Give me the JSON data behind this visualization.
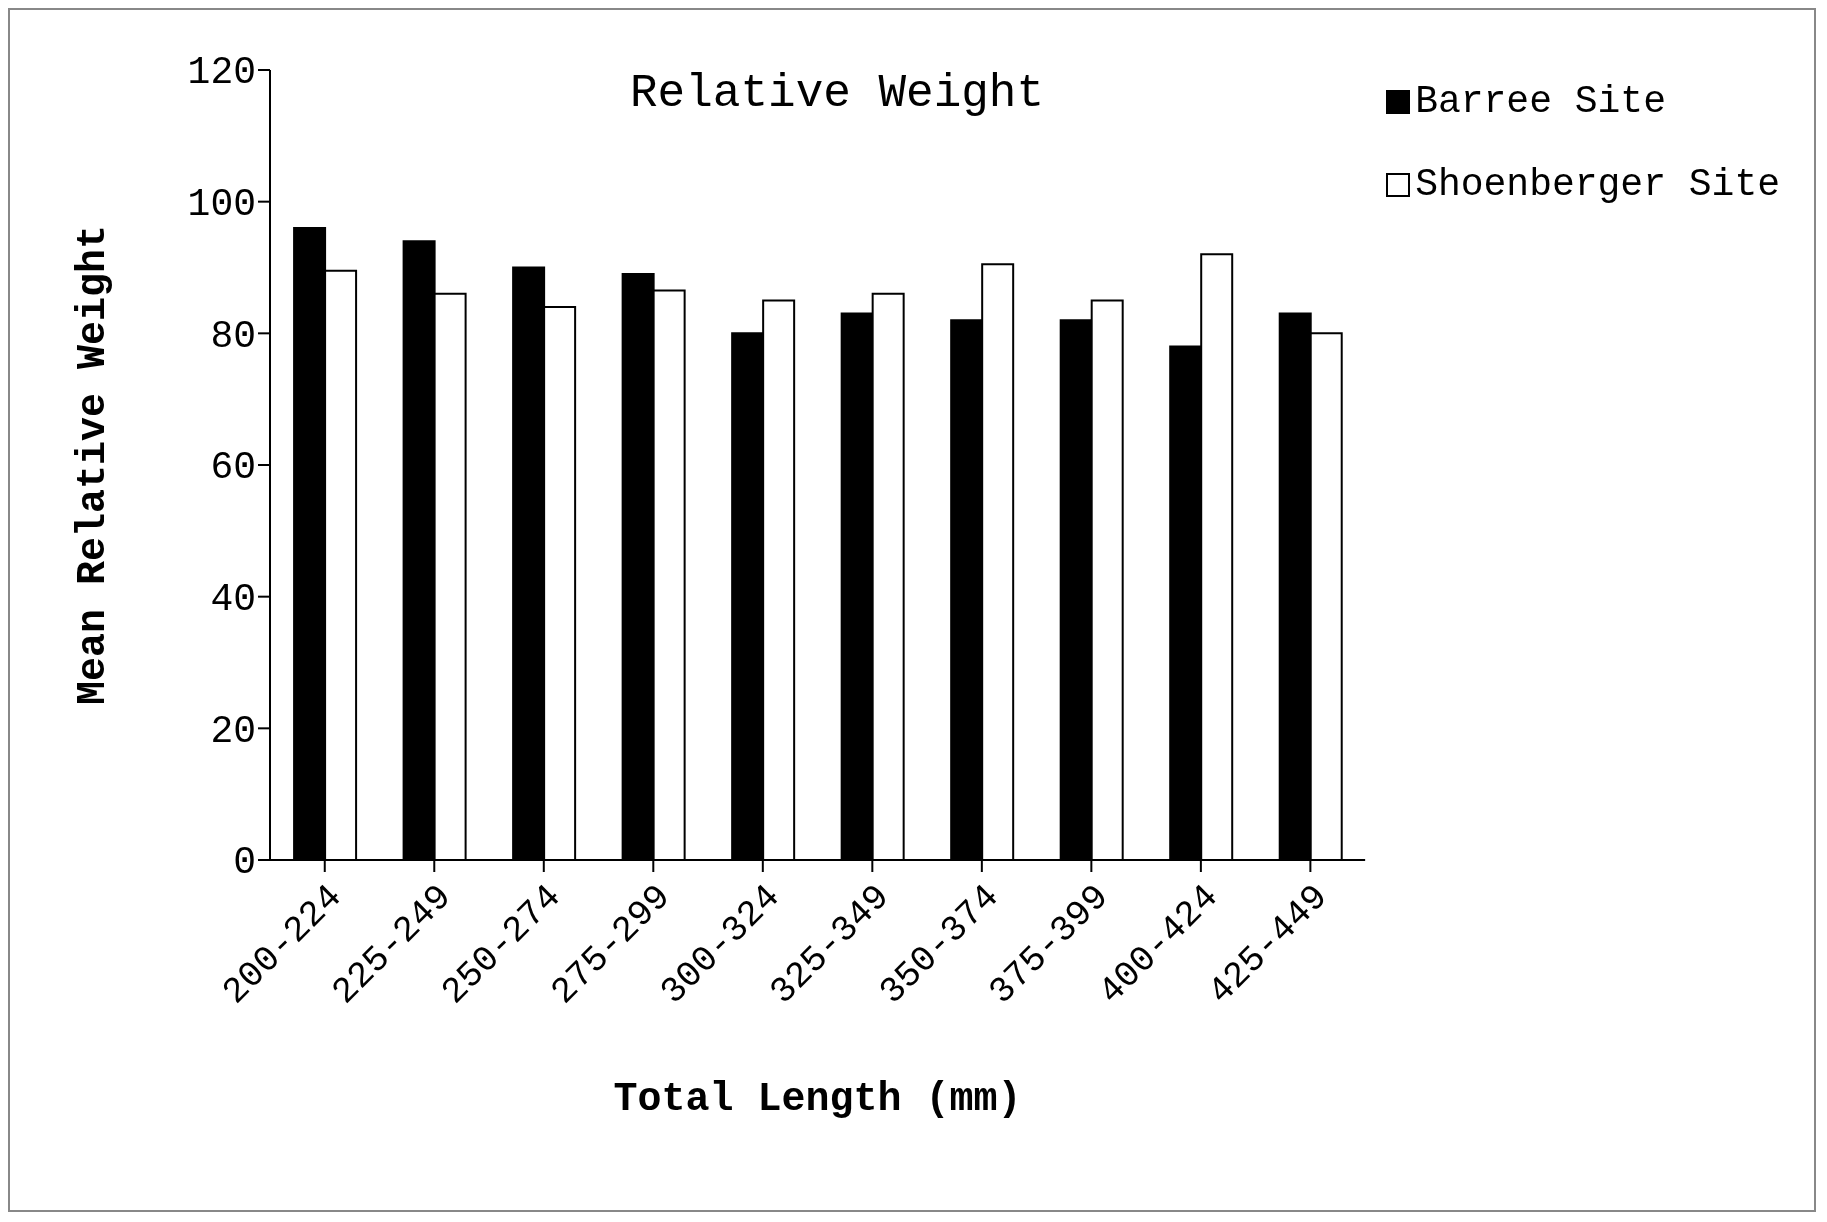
{
  "chart_data": {
    "type": "bar",
    "title": "Relative Weight",
    "xlabel": "Total Length (mm)",
    "ylabel": "Mean Relative Weight",
    "categories": [
      "200-224",
      "225-249",
      "250-274",
      "275-299",
      "300-324",
      "325-349",
      "350-374",
      "375-399",
      "400-424",
      "425-449"
    ],
    "series": [
      {
        "name": "Barree Site",
        "color": "#000000",
        "values": [
          96,
          94,
          90,
          89,
          80,
          83,
          82,
          82,
          78,
          83
        ]
      },
      {
        "name": "Shoenberger Site",
        "color": "#ffffff",
        "values": [
          89.5,
          86,
          84,
          86.5,
          85,
          86,
          90.5,
          85,
          92,
          80
        ]
      }
    ],
    "ylim": [
      0,
      120
    ],
    "yticks": [
      0,
      20,
      40,
      60,
      80,
      100,
      120
    ],
    "grid": false,
    "legend": "top right"
  }
}
